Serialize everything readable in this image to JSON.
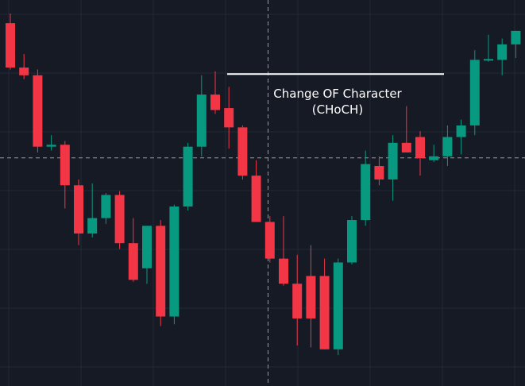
{
  "colors": {
    "background": "#161a25",
    "grid": "#232836",
    "bullish": "#089981",
    "bearish": "#f23645",
    "crosshair": "#9598a1",
    "annotation_text": "#ffffff",
    "annotation_line": "#ffffff"
  },
  "annotation": {
    "line1": "Change OF Character",
    "line2": "(CHoCH)"
  },
  "chart_data": {
    "type": "candlestick",
    "note_units": "price units on an unlabeled axis (higher value = higher on chart)",
    "y_range": [
      0,
      100
    ],
    "grid": true,
    "crosshair_price": 59.1,
    "choch_level": 80.8,
    "candles": [
      {
        "o": 94.0,
        "h": 96.5,
        "l": 82.0,
        "c": 82.5
      },
      {
        "o": 82.5,
        "h": 86.0,
        "l": 79.5,
        "c": 80.5
      },
      {
        "o": 80.5,
        "h": 82.0,
        "l": 60.5,
        "c": 62.0
      },
      {
        "o": 62.0,
        "h": 65.0,
        "l": 61.0,
        "c": 62.5
      },
      {
        "o": 62.5,
        "h": 63.5,
        "l": 46.0,
        "c": 52.0
      },
      {
        "o": 52.0,
        "h": 53.5,
        "l": 36.5,
        "c": 39.5
      },
      {
        "o": 39.5,
        "h": 52.5,
        "l": 38.5,
        "c": 43.5
      },
      {
        "o": 43.5,
        "h": 50.0,
        "l": 42.0,
        "c": 49.5
      },
      {
        "o": 49.5,
        "h": 50.5,
        "l": 35.5,
        "c": 37.0
      },
      {
        "o": 37.0,
        "h": 43.5,
        "l": 27.0,
        "c": 27.5
      },
      {
        "o": 30.5,
        "h": 41.5,
        "l": 26.5,
        "c": 41.5
      },
      {
        "o": 41.5,
        "h": 43.0,
        "l": 15.5,
        "c": 18.0
      },
      {
        "o": 18.0,
        "h": 47.0,
        "l": 16.0,
        "c": 46.5
      },
      {
        "o": 46.5,
        "h": 63.0,
        "l": 45.5,
        "c": 62.0
      },
      {
        "o": 62.0,
        "h": 80.5,
        "l": 59.5,
        "c": 75.5
      },
      {
        "o": 75.5,
        "h": 81.5,
        "l": 70.5,
        "c": 71.5
      },
      {
        "o": 72.0,
        "h": 77.5,
        "l": 61.5,
        "c": 67.0
      },
      {
        "o": 67.0,
        "h": 67.5,
        "l": 53.5,
        "c": 54.5
      },
      {
        "o": 54.5,
        "h": 58.5,
        "l": 42.5,
        "c": 42.5
      },
      {
        "o": 42.5,
        "h": 44.0,
        "l": 32.0,
        "c": 33.0
      },
      {
        "o": 33.0,
        "h": 44.0,
        "l": 26.0,
        "c": 26.5
      },
      {
        "o": 26.5,
        "h": 34.0,
        "l": 10.5,
        "c": 17.5
      },
      {
        "o": 28.5,
        "h": 36.5,
        "l": 10.0,
        "c": 17.5
      },
      {
        "o": 28.5,
        "h": 33.0,
        "l": 9.5,
        "c": 9.5
      },
      {
        "o": 9.5,
        "h": 33.0,
        "l": 8.0,
        "c": 32.0
      },
      {
        "o": 32.0,
        "h": 44.0,
        "l": 31.5,
        "c": 43.0
      },
      {
        "o": 43.0,
        "h": 61.0,
        "l": 41.5,
        "c": 57.5
      },
      {
        "o": 57.0,
        "h": 59.5,
        "l": 52.0,
        "c": 53.5
      },
      {
        "o": 53.5,
        "h": 65.0,
        "l": 48.0,
        "c": 63.0
      },
      {
        "o": 63.0,
        "h": 72.5,
        "l": 61.0,
        "c": 60.5
      },
      {
        "o": 64.5,
        "h": 66.0,
        "l": 54.5,
        "c": 59.0
      },
      {
        "o": 58.5,
        "h": 62.5,
        "l": 58.0,
        "c": 59.5
      },
      {
        "o": 59.5,
        "h": 67.5,
        "l": 57.0,
        "c": 64.5
      },
      {
        "o": 64.5,
        "h": 69.0,
        "l": 60.0,
        "c": 67.5
      },
      {
        "o": 67.5,
        "h": 87.0,
        "l": 65.0,
        "c": 84.5
      },
      {
        "o": 84.5,
        "h": 91.0,
        "l": 84.0,
        "c": 84.5
      },
      {
        "o": 84.5,
        "h": 90.0,
        "l": 80.5,
        "c": 88.5
      },
      {
        "o": 88.5,
        "h": 92.0,
        "l": 85.0,
        "c": 92.0
      }
    ]
  }
}
